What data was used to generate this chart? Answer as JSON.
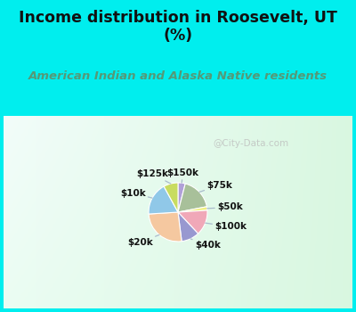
{
  "title": "Income distribution in Roosevelt, UT\n(%)",
  "subtitle": "American Indian and Alaska Native residents",
  "labels": [
    "$150k",
    "$75k",
    "$50k",
    "$100k",
    "$40k",
    "$20k",
    "$10k",
    "$125k"
  ],
  "values": [
    4,
    18,
    2,
    14,
    10,
    26,
    18,
    8
  ],
  "colors": [
    "#b0a0d8",
    "#a8c09a",
    "#f0f080",
    "#f0a8b8",
    "#9898d0",
    "#f5c8a0",
    "#90c8e8",
    "#c8dc60"
  ],
  "background_color": "#00eeee",
  "chart_bg_color": "#ddf0e8",
  "title_color": "#111111",
  "subtitle_color": "#559977",
  "watermark": "@City-Data.com",
  "label_color": "#111111",
  "line_color": "#aabbcc"
}
